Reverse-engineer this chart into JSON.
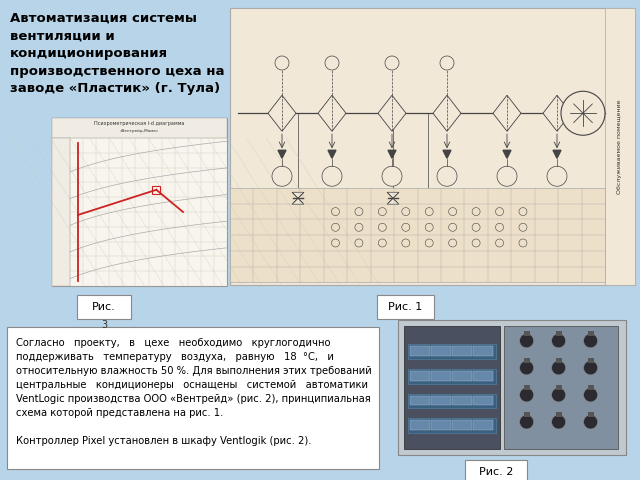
{
  "bg_color": "#b8d4e8",
  "title_text": "Автоматизация системы\nвентиляции и\nкондиционирования\nпроизводственного цеха на\nзаводе «Пластик» (г. Тула)",
  "title_fontsize": 9.5,
  "title_weight": "bold",
  "body_text_line1": "Согласно   проекту,   в   цехе   необходимо   круглогодично",
  "body_text_line2": "поддерживать   температуру   воздуха,   равную   18  °C,   и",
  "body_text_line3": "относительную влажность 50 %. Для выполнения этих требований",
  "body_text_line4": "центральные   кондиционеры   оснащены   системой   автоматики",
  "body_text_line5": "VentLogic производства ООО «Вентрейд» (рис. 2), принципиальная",
  "body_text_line6": "схема которой представлена на рис. 1.",
  "body_text_line7": "",
  "body_text_line8": "Контроллер Pixel установлен в шкафу Ventlogik (рис. 2).",
  "body_fontsize": 7.2,
  "fig1_label": "Рис. 1",
  "fig2_label": "Рис. 2",
  "fig3_label": "Рис.",
  "fig3_num": "3",
  "diagram_bg": "#f2e8d8",
  "line_color": "#444444",
  "grid_color": "#ccccaa",
  "red_color": "#cc2222"
}
